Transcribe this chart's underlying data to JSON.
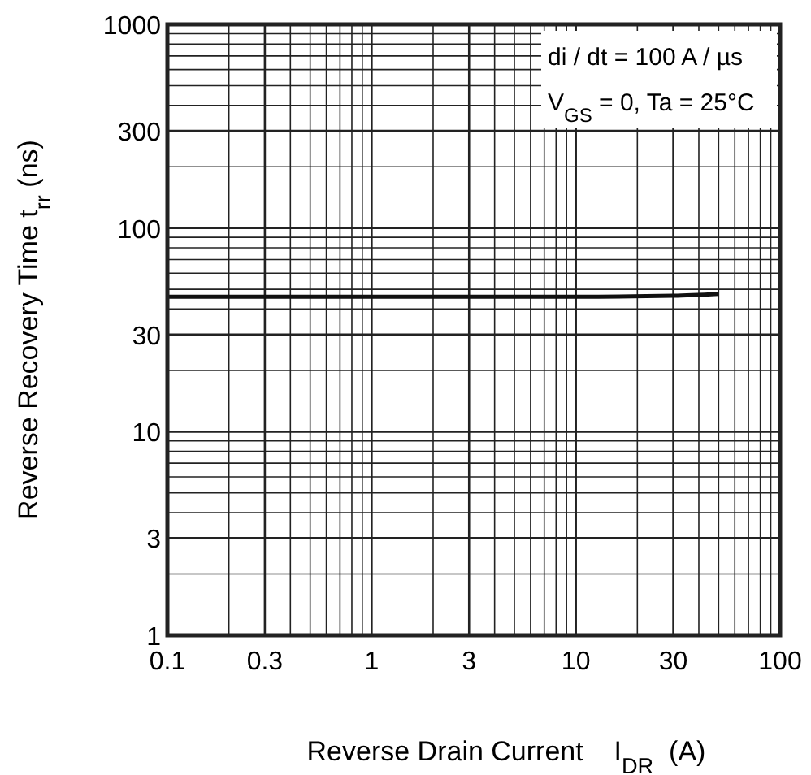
{
  "chart_data": {
    "type": "line",
    "xlabel": "Reverse Drain Current    I$_{DR}$  (A)",
    "ylabel": "Reverse Recovery Time  t$_{rr}$  (ns)",
    "annotations": [
      "di / dt = 100 A / µs",
      "V$_{GS}$ = 0, Ta = 25°C"
    ],
    "log": "xy",
    "grid": true,
    "marker": "none",
    "line_style": "solid",
    "xlim": [
      0.1,
      100
    ],
    "ylim": [
      1,
      1000
    ],
    "xticks": [
      0.1,
      {
        "value": 0.2,
        "label": null
      },
      0.3,
      {
        "value": 0.4,
        "label": null
      },
      {
        "value": 0.5,
        "label": null
      },
      {
        "value": 0.6,
        "label": null
      },
      {
        "value": 0.7,
        "label": null
      },
      {
        "value": 0.8,
        "label": null
      },
      {
        "value": 0.9,
        "label": null
      },
      1,
      {
        "value": 2,
        "label": null
      },
      3,
      {
        "value": 4,
        "label": null
      },
      {
        "value": 5,
        "label": null
      },
      {
        "value": 6,
        "label": null
      },
      {
        "value": 7,
        "label": null
      },
      {
        "value": 8,
        "label": null
      },
      {
        "value": 9,
        "label": null
      },
      10,
      {
        "value": 20,
        "label": null
      },
      30,
      {
        "value": 40,
        "label": null
      },
      {
        "value": 50,
        "label": null
      },
      {
        "value": 60,
        "label": null
      },
      {
        "value": 70,
        "label": null
      },
      {
        "value": 80,
        "label": null
      },
      {
        "value": 90,
        "label": null
      },
      100
    ],
    "yticks": [
      1,
      {
        "value": 2,
        "label": null
      },
      3,
      {
        "value": 4,
        "label": null
      },
      {
        "value": 5,
        "label": null
      },
      {
        "value": 6,
        "label": null
      },
      {
        "value": 7,
        "label": null
      },
      {
        "value": 8,
        "label": null
      },
      {
        "value": 9,
        "label": null
      },
      10,
      {
        "value": 20,
        "label": null
      },
      30,
      {
        "value": 40,
        "label": null
      },
      {
        "value": 50,
        "label": null
      },
      {
        "value": 60,
        "label": null
      },
      {
        "value": 70,
        "label": null
      },
      {
        "value": 80,
        "label": null
      },
      {
        "value": 90,
        "label": null
      },
      100,
      {
        "value": 200,
        "label": null
      },
      300,
      {
        "value": 400,
        "label": null
      },
      {
        "value": 500,
        "label": null
      },
      {
        "value": 600,
        "label": null
      },
      {
        "value": 700,
        "label": null
      },
      {
        "value": 800,
        "label": null
      },
      {
        "value": 900,
        "label": null
      },
      1000
    ],
    "x": [
      0.1,
      1,
      10,
      30,
      50
    ],
    "series": [
      {
        "color": "#111111",
        "values": [
          46,
          46,
          46,
          46.5,
          47.5
        ]
      }
    ]
  }
}
